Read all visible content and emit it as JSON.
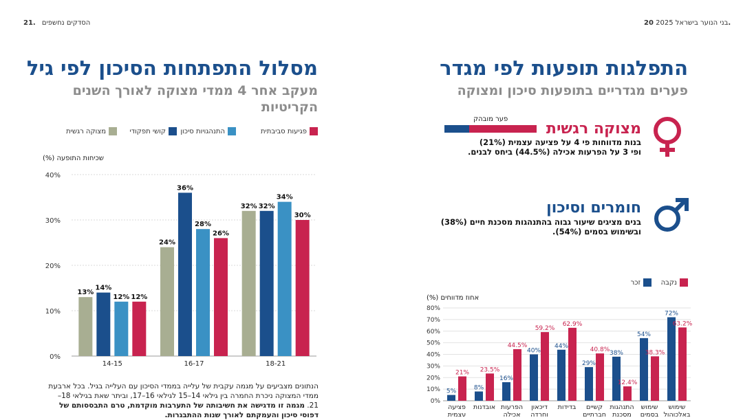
{
  "header": {
    "right_page_num": "20.",
    "right_page_title": "בני הנוער בישראל 2025",
    "left_page_num": "21.",
    "left_page_title": "הסדקים נחשפים"
  },
  "left": {
    "title": "מסלול התפתחות הסיכון לפי גיל",
    "subtitle": "מעקב אחר 4 ממדי מצוקה לאורך השנים הקריטיות",
    "note_1": "הנתונים מצביעים על מגמה עקבית של עלייה בממדי הסיכון עם העלייה בגיל. בכל ארבעת ממדי המצוקה ניכרת החמרה בין גילאי 14–15 לגילאי 16–17, וביתר שאת בגילאי 18–21.",
    "note_2": "מגמה זו מדגישה את חשיבותה של התערבות מוקדמת, טרם התבססותם של דפוסי סיכון והעמקתם לאורך שנות ההתבגרות."
  },
  "right": {
    "title": "התפלגות תופעות לפי מגדר",
    "subtitle": "פערים מגדריים בתופעות סיכון ומצוקה",
    "female_title": "מצוקה רגשית",
    "female_gap_label": "פער מובהק",
    "female_text_1": "בנות מדווחות פי 4 על פציעה עצמית (21%)",
    "female_text_2": "ופי 3 על הפרעות אכילה (44.5%) ביחס לבנים.",
    "male_title": "חומרים וסיכון",
    "male_text_1": "בנים מציגים שיעור גבוה בהתנהגות מסכנת חיים (38%)",
    "male_text_2": "ובשימוש בסמים (54%)."
  },
  "colors": {
    "olive": "#a8ae92",
    "navy": "#1b4f8c",
    "light_blue": "#3a91c4",
    "crimson": "#c8234f",
    "title_blue": "#1b4f8c",
    "grey": "#8c8c8c"
  },
  "chart_data": [
    {
      "type": "bar",
      "ylabel": "שכיחות התופעה (%)",
      "ylim": [
        0,
        40
      ],
      "yticks": [
        "0%",
        "10%",
        "20%",
        "30%",
        "40%"
      ],
      "grid": true,
      "legend_position": "top",
      "categories": [
        "14-15",
        "16-17",
        "18-21"
      ],
      "series": [
        {
          "name": "מצוקה רגשית",
          "color": "#a8ae92",
          "values": [
            13,
            24,
            32
          ],
          "labels": [
            "13%",
            "24%",
            "32%"
          ]
        },
        {
          "name": "קושי תפקודי",
          "color": "#1b4f8c",
          "values": [
            14,
            36,
            32
          ],
          "labels": [
            "14%",
            "36%",
            "32%"
          ]
        },
        {
          "name": "התנהגויות סיכון",
          "color": "#3a91c4",
          "values": [
            12,
            28,
            34
          ],
          "labels": [
            "12%",
            "28%",
            "34%"
          ]
        },
        {
          "name": "פגיעות סביבתית",
          "color": "#c8234f",
          "values": [
            12,
            26,
            30
          ],
          "labels": [
            "12%",
            "26%",
            "30%"
          ]
        }
      ]
    },
    {
      "type": "bar",
      "ylabel": "אחוז מדווחים (%)",
      "ylim": [
        0,
        80
      ],
      "yticks": [
        "0%",
        "10%",
        "20%",
        "30%",
        "40%",
        "50%",
        "60%",
        "70%",
        "80%"
      ],
      "grid": true,
      "legend_position": "top-right",
      "categories": [
        [
          "פציעה",
          "עצמית"
        ],
        [
          "אובדנות"
        ],
        [
          "הפרעות",
          "אכילה"
        ],
        [
          "דיכאון",
          "וחרדה"
        ],
        [
          "בדידות"
        ],
        [
          "קשיים",
          "חברתיים"
        ],
        [
          "התנהגות",
          "מסכנת"
        ],
        [
          "שימוש",
          "בסמים"
        ],
        [
          "שימוש",
          "באלכוהול"
        ]
      ],
      "series": [
        {
          "name": "זכר",
          "color": "#1b4f8c",
          "values": [
            5,
            8,
            16,
            40,
            44,
            29,
            38,
            54,
            72
          ],
          "labels": [
            "5%",
            "8%",
            "16%",
            "40%",
            "44%",
            "29%",
            "38%",
            "54%",
            "72%"
          ]
        },
        {
          "name": "נקבה",
          "color": "#c8234f",
          "values": [
            21,
            23.5,
            44.5,
            59.2,
            62.9,
            40.8,
            12.4,
            38.3,
            63.2
          ],
          "labels": [
            "21%",
            "23.5%",
            "44.5%",
            "59.2%",
            "62.9%",
            "40.8%",
            "12.4%",
            "38.3%",
            "63.2%"
          ]
        }
      ]
    }
  ]
}
